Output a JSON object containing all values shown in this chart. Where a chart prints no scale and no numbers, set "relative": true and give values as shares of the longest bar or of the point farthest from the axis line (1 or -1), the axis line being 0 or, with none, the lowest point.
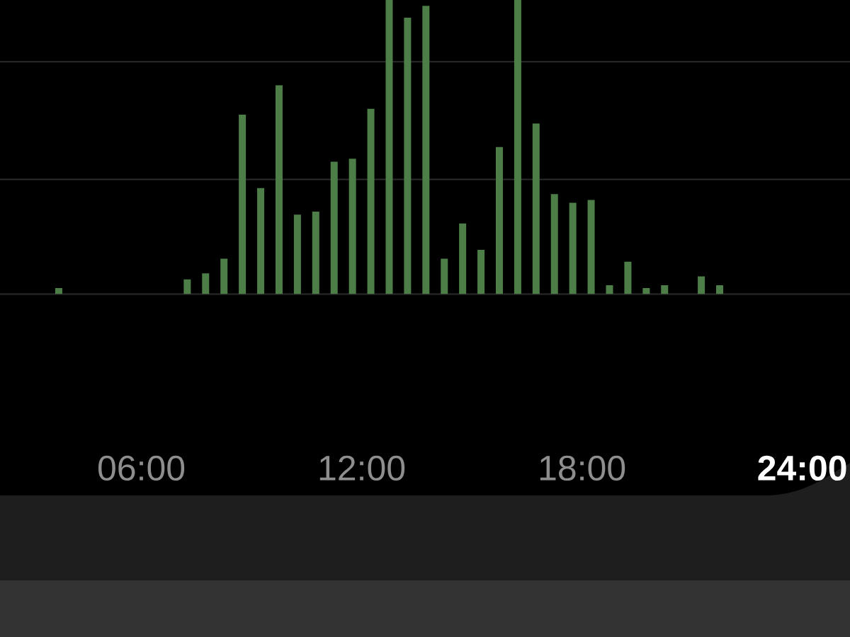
{
  "chart_data": {
    "type": "bar",
    "relative": true,
    "x": [
      3.75,
      7.25,
      7.75,
      8.25,
      8.75,
      9.25,
      9.75,
      10.25,
      10.75,
      11.25,
      11.75,
      12.25,
      12.75,
      13.25,
      13.75,
      14.25,
      14.75,
      15.25,
      15.75,
      16.25,
      16.75,
      17.25,
      17.75,
      18.25,
      18.75,
      19.25,
      19.75,
      20.25,
      21.25,
      21.75
    ],
    "values": [
      0.02,
      0.05,
      0.07,
      0.12,
      0.61,
      0.36,
      0.71,
      0.27,
      0.28,
      0.45,
      0.46,
      0.63,
      1,
      0.94,
      0.98,
      0.12,
      0.24,
      0.15,
      0.5,
      1,
      0.58,
      0.34,
      0.31,
      0.32,
      0.03,
      0.11,
      0.02,
      0.03,
      0.06,
      0.03
    ],
    "color": "#4e7e48",
    "xlim": [
      2.15,
      25.3
    ],
    "xticks": [
      {
        "value": 6,
        "label": "06:00"
      },
      {
        "value": 12,
        "label": "12:00"
      },
      {
        "value": 18,
        "label": "18:00"
      },
      {
        "value": 24,
        "label": "24:00"
      }
    ],
    "ref_lines": [
      {
        "axis": "y",
        "value": 0.39,
        "color": "#2b2b2b"
      },
      {
        "axis": "y",
        "value": 0.79,
        "color": "#2b2b2b"
      }
    ]
  }
}
